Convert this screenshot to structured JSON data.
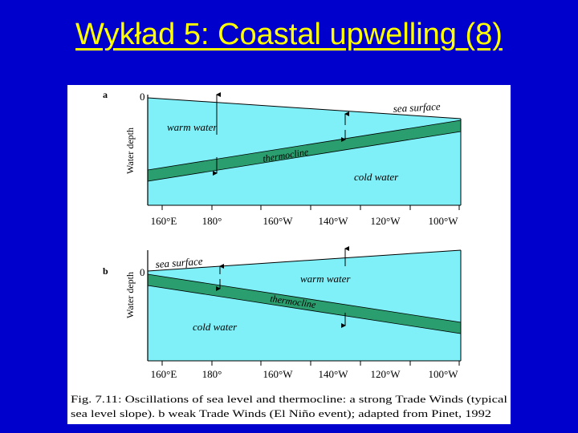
{
  "slide": {
    "title": "Wykład 5: Coastal upwelling (8)"
  },
  "figure": {
    "caption_line1": "Fig. 7.11: Oscillations of sea level and thermocline: a strong Trade Winds (typical",
    "caption_line2": "sea level slope). b weak Trade Winds (El Niño event); adapted from Pinet, 1992",
    "x_tick_labels": [
      "160°E",
      "180°",
      "160°W",
      "140°W",
      "120°W",
      "100°W"
    ],
    "colors": {
      "water": "#7ff0f8",
      "thermocline": "#2a9e6e",
      "frame": "#000000",
      "title": "#ffff00",
      "background": "#0000cc"
    },
    "panels": [
      {
        "letter": "a",
        "y_label": "Water depth",
        "zero_label": "0",
        "sea_surface_label": "sea surface",
        "warm_label": "warm water",
        "thermocline_label": "thermocline",
        "cold_label": "cold water"
      },
      {
        "letter": "b",
        "y_label": "Water depth",
        "zero_label": "0",
        "sea_surface_label": "sea surface",
        "warm_label": "warm water",
        "thermocline_label": "thermocline",
        "cold_label": "cold water"
      }
    ]
  }
}
